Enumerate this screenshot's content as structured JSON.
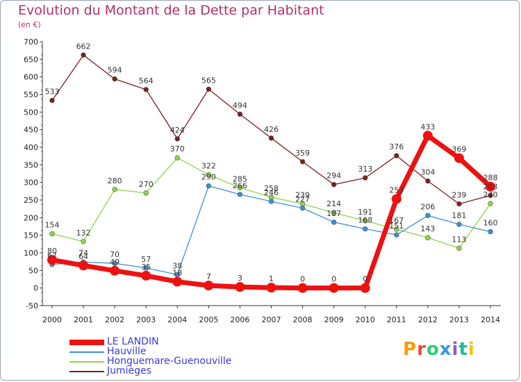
{
  "title": "Evolution du Montant de la Dette par Habitant",
  "subtitle": "(en €)",
  "brand": {
    "text": "Proxiti",
    "colors": [
      "#f39c12",
      "#e74c3c",
      "#2ecc71",
      "#3498db",
      "#9b59b6",
      "#1abc9c",
      "#f1c40f"
    ]
  },
  "chart_data": {
    "type": "line",
    "title": "Evolution du Montant de la Dette par Habitant",
    "ylabel": "(en €)",
    "x": [
      "2000",
      "2001",
      "2002",
      "2003",
      "2004",
      "2005",
      "2006",
      "2007",
      "2008",
      "2009",
      "2010",
      "2011",
      "2012",
      "2013",
      "2014"
    ],
    "ylim": [
      -50,
      700
    ],
    "yticks": [
      -50,
      0,
      50,
      100,
      150,
      200,
      250,
      300,
      350,
      400,
      450,
      500,
      550,
      600,
      650,
      700
    ],
    "grid": false,
    "legend_position": "bottom-left",
    "series": [
      {
        "name": "LE LANDIN",
        "color": "#ee1111",
        "values": [
          80,
          64,
          49,
          35,
          18,
          7,
          3,
          1,
          0,
          0,
          0,
          253,
          433,
          369,
          288
        ]
      },
      {
        "name": "Hauville",
        "color": "#3d8fd6",
        "values": [
          67,
          74,
          70,
          57,
          38,
          290,
          266,
          246,
          227,
          187,
          168,
          151,
          206,
          181,
          160
        ]
      },
      {
        "name": "Honguemare-Guenouville",
        "color": "#8ed44a",
        "values": [
          154,
          132,
          280,
          270,
          370,
          322,
          285,
          258,
          239,
          214,
          191,
          167,
          143,
          113,
          240
        ]
      },
      {
        "name": "Jumièges",
        "color": "#7a1e23",
        "values": [
          533,
          662,
          594,
          564,
          424,
          565,
          494,
          426,
          359,
          294,
          313,
          376,
          304,
          239,
          263
        ]
      }
    ],
    "data_labels": [
      [
        "80",
        "64",
        "49",
        "35",
        "18",
        "7",
        "3",
        "1",
        "0",
        "0",
        "0",
        "253",
        "433",
        "369",
        "288"
      ],
      [
        "67",
        "74",
        "70",
        "57",
        "38",
        "290",
        "266",
        "246",
        "227",
        "187",
        "168",
        "151",
        "206",
        "181",
        "160"
      ],
      [
        "154",
        "132",
        "280",
        "270",
        "370",
        "322",
        "285",
        "258",
        "239",
        "214",
        "191",
        "167",
        "143",
        "113",
        "240"
      ],
      [
        "533",
        "662",
        "594",
        "564",
        "424",
        "565",
        "494",
        "426",
        "359",
        "294",
        "313",
        "376",
        "304",
        "239",
        "263"
      ]
    ]
  }
}
